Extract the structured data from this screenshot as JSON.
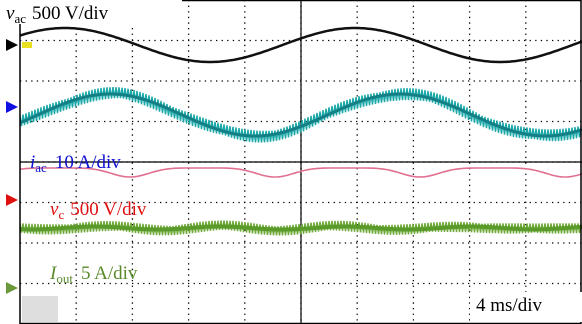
{
  "channels": [
    {
      "symbol": "v",
      "subscript": "ac",
      "scale": "500 V/div"
    },
    {
      "symbol": "i",
      "subscript": "ac",
      "scale": "10 A/div"
    },
    {
      "symbol": "v",
      "subscript": "c",
      "scale": "500 V/div"
    },
    {
      "symbol": "I",
      "subscript": "out",
      "scale": "5 A/div"
    }
  ],
  "timebase": "4 ms/div"
}
